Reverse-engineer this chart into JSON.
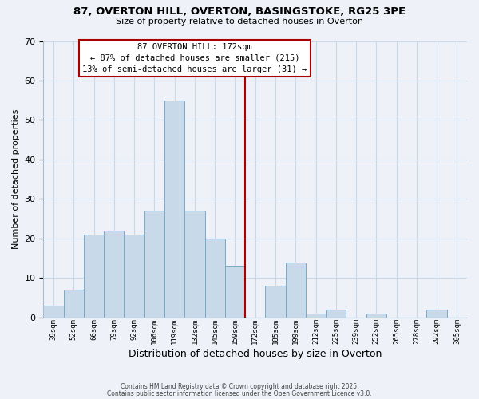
{
  "title": "87, OVERTON HILL, OVERTON, BASINGSTOKE, RG25 3PE",
  "subtitle": "Size of property relative to detached houses in Overton",
  "xlabel": "Distribution of detached houses by size in Overton",
  "ylabel": "Number of detached properties",
  "bar_labels": [
    "39sqm",
    "52sqm",
    "66sqm",
    "79sqm",
    "92sqm",
    "106sqm",
    "119sqm",
    "132sqm",
    "145sqm",
    "159sqm",
    "172sqm",
    "185sqm",
    "199sqm",
    "212sqm",
    "225sqm",
    "239sqm",
    "252sqm",
    "265sqm",
    "278sqm",
    "292sqm",
    "305sqm"
  ],
  "bar_heights": [
    3,
    7,
    21,
    22,
    21,
    27,
    55,
    27,
    20,
    13,
    0,
    8,
    14,
    1,
    2,
    0,
    1,
    0,
    0,
    2,
    0
  ],
  "bar_color": "#c8daea",
  "bar_edge_color": "#7aaac8",
  "vline_color": "#aa0000",
  "ylim": [
    0,
    70
  ],
  "yticks": [
    0,
    10,
    20,
    30,
    40,
    50,
    60,
    70
  ],
  "annotation_title": "87 OVERTON HILL: 172sqm",
  "annotation_line1": "← 87% of detached houses are smaller (215)",
  "annotation_line2": "13% of semi-detached houses are larger (31) →",
  "annotation_box_color": "#aa0000",
  "grid_color": "#c8d8e8",
  "background_color": "#eef2f8",
  "footer1": "Contains HM Land Registry data © Crown copyright and database right 2025.",
  "footer2": "Contains public sector information licensed under the Open Government Licence v3.0."
}
